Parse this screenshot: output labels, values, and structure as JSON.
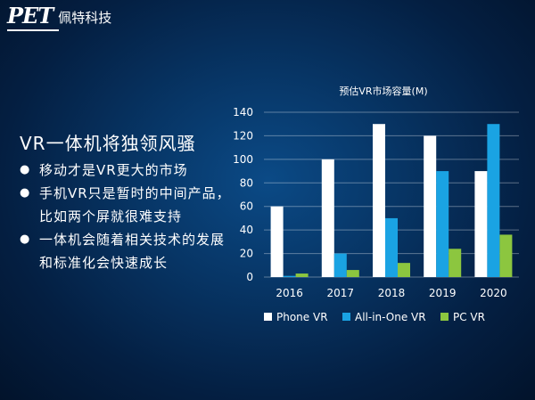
{
  "logo": {
    "mark": "PET",
    "name": "佩特科技"
  },
  "slide": {
    "heading": "VR一体机将独领风骚",
    "bullets": [
      "移动才是VR更大的市场",
      "手机VR只是暂时的中间产品，比如两个屏就很难支持",
      "一体机会随着相关技术的发展和标准化会快速成长"
    ]
  },
  "chart_data": {
    "type": "bar",
    "title": "预估VR市场容量(M)",
    "categories": [
      "2016",
      "2017",
      "2018",
      "2019",
      "2020"
    ],
    "series": [
      {
        "name": "Phone VR",
        "color": "#ffffff",
        "values": [
          60,
          100,
          130,
          120,
          90
        ]
      },
      {
        "name": "All-in-One VR",
        "color": "#1aa3e3",
        "values": [
          1,
          20,
          50,
          90,
          130
        ]
      },
      {
        "name": "PC VR",
        "color": "#8cc63f",
        "values": [
          3,
          6,
          12,
          24,
          36
        ]
      }
    ],
    "yticks": [
      0,
      20,
      40,
      60,
      80,
      100,
      120,
      140
    ],
    "ylim": [
      0,
      140
    ],
    "grid": true,
    "legend_position": "bottom"
  }
}
